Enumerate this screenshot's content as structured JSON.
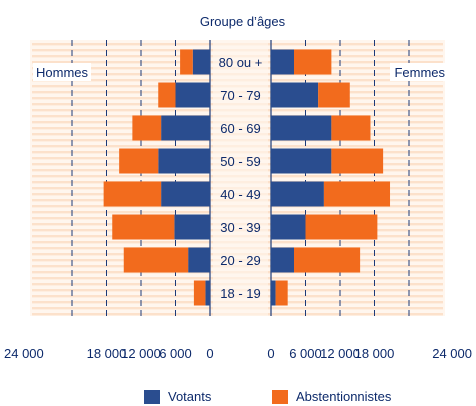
{
  "chart_data": {
    "type": "bar",
    "title": "Groupe d’âges",
    "left_panel_label": "Hommes",
    "right_panel_label": "Femmes",
    "categories": [
      "80 ou +",
      "70 - 79",
      "60 - 69",
      "50 - 59",
      "40 - 49",
      "30 - 39",
      "20 - 29",
      "18 - 19"
    ],
    "series": [
      {
        "name": "Votants",
        "color": "#2a4d8f",
        "hommes": [
          3000,
          6000,
          8500,
          9000,
          8500,
          6200,
          3800,
          800
        ],
        "femmes": [
          4000,
          8200,
          10500,
          10500,
          9200,
          6000,
          4000,
          800
        ]
      },
      {
        "name": "Abstentionnistes",
        "color": "#f26b1d",
        "hommes": [
          2200,
          3000,
          5000,
          6800,
          10000,
          10800,
          11200,
          2000
        ],
        "femmes": [
          6500,
          5500,
          6800,
          9000,
          11500,
          12500,
          11500,
          2100
        ]
      }
    ],
    "x_ticks_left": [
      "24 000",
      "18 000",
      "12 000",
      "6 000",
      "0"
    ],
    "x_ticks_right": [
      "0",
      "6 000",
      "12 000",
      "18 000",
      "24 000"
    ],
    "xlim": [
      0,
      24000
    ],
    "grid": true,
    "legend_position": "bottom"
  }
}
